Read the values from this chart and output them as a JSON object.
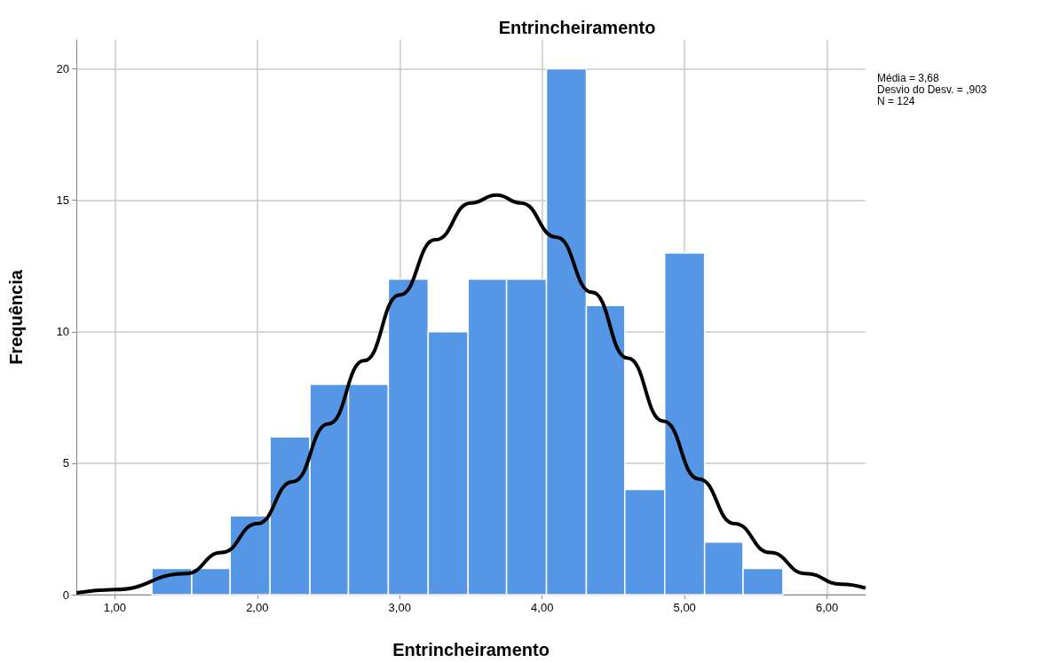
{
  "chart_data": {
    "type": "histogram",
    "title": "Entrincheiramento",
    "xlabel": "Entrincheiramento",
    "ylabel": "Frequência",
    "annotations": [
      "Média = 3,68",
      "Desvio do Desv. = ,903",
      "N = 124"
    ],
    "bins": [
      1.26,
      1.54,
      1.81,
      2.09,
      2.37,
      2.64,
      2.92,
      3.2,
      3.48,
      3.75,
      4.03,
      4.31,
      4.58,
      4.86,
      5.14,
      5.41,
      5.69
    ],
    "values": [
      1,
      1,
      3,
      6,
      8,
      8,
      12,
      10,
      12,
      12,
      20,
      11,
      4,
      13,
      2,
      1
    ],
    "color": "#5596e6",
    "series": [
      {
        "type": "line",
        "color": "#000000",
        "x": [
          0.73,
          1.0,
          1.5,
          1.75,
          2.0,
          2.25,
          2.5,
          2.75,
          3.0,
          3.25,
          3.5,
          3.68,
          3.85,
          4.1,
          4.35,
          4.6,
          4.85,
          5.1,
          5.35,
          5.6,
          5.85,
          6.1,
          6.27
        ],
        "values": [
          0.07,
          0.19,
          0.8,
          1.6,
          2.7,
          4.3,
          6.5,
          8.9,
          11.4,
          13.5,
          14.9,
          15.2,
          14.9,
          13.6,
          11.5,
          9.0,
          6.6,
          4.4,
          2.7,
          1.6,
          0.8,
          0.4,
          0.25
        ]
      }
    ],
    "xlim": [
      0.73,
      6.27
    ],
    "ylim": [
      0,
      21.1
    ],
    "xticks": [
      {
        "value": 1,
        "label": "1,00"
      },
      {
        "value": 2,
        "label": "2,00"
      },
      {
        "value": 3,
        "label": "3,00"
      },
      {
        "value": 4,
        "label": "4,00"
      },
      {
        "value": 5,
        "label": "5,00"
      },
      {
        "value": 6,
        "label": "6,00"
      }
    ],
    "yticks": [
      0,
      5,
      10,
      15,
      20
    ],
    "grid": true,
    "marker": "none",
    "line_style": "solid"
  }
}
